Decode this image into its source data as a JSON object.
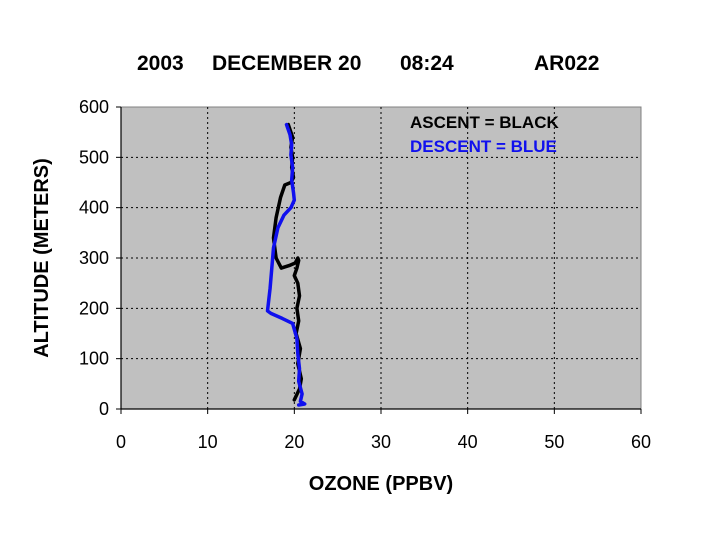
{
  "header": {
    "year": "2003",
    "date": "DECEMBER 20",
    "time": "08:24",
    "flight": "AR022"
  },
  "legend": {
    "ascent": "ASCENT   = BLACK",
    "descent": "DESCENT = BLUE"
  },
  "colors": {
    "ascent": "#000000",
    "descent": "#1010ee",
    "plot_background": "#c0c0c0"
  },
  "chart_data": {
    "type": "line",
    "xlabel": "OZONE (PPBV)",
    "ylabel": "ALTITUDE (METERS)",
    "xlim": [
      0,
      60
    ],
    "ylim": [
      0,
      600
    ],
    "xticks": [
      0,
      10,
      20,
      30,
      40,
      50,
      60
    ],
    "yticks": [
      0,
      100,
      200,
      300,
      400,
      500,
      600
    ],
    "grid": true,
    "legend_position": "top-right",
    "series": [
      {
        "name": "ASCENT",
        "x": [
          20.0,
          20.6,
          20.8,
          20.4,
          20.7,
          20.2,
          20.5,
          20.3,
          20.6,
          20.4,
          20.0,
          20.3,
          20.5,
          20.4,
          20.1,
          19.4,
          18.5,
          17.9,
          17.6,
          17.9,
          18.4,
          18.9,
          19.6,
          19.9,
          19.7,
          19.8,
          19.6,
          19.8,
          19.5,
          19.3
        ],
        "y": [
          18,
          40,
          60,
          90,
          120,
          150,
          175,
          200,
          225,
          250,
          265,
          280,
          295,
          300,
          290,
          285,
          280,
          300,
          340,
          380,
          420,
          445,
          450,
          460,
          480,
          500,
          520,
          540,
          555,
          565
        ]
      },
      {
        "name": "DESCENT",
        "x": [
          19.1,
          19.5,
          19.7,
          19.6,
          19.8,
          19.7,
          19.9,
          20.0,
          19.6,
          18.8,
          18.1,
          17.6,
          17.4,
          17.2,
          16.9,
          17.3,
          18.6,
          19.8,
          20.3,
          20.4,
          20.6,
          20.5,
          20.9,
          20.7,
          21.2,
          20.5
        ],
        "y": [
          565,
          545,
          525,
          505,
          480,
          455,
          430,
          415,
          400,
          385,
          360,
          320,
          280,
          240,
          195,
          190,
          180,
          170,
          140,
          110,
          80,
          55,
          30,
          15,
          10,
          8
        ]
      }
    ]
  }
}
